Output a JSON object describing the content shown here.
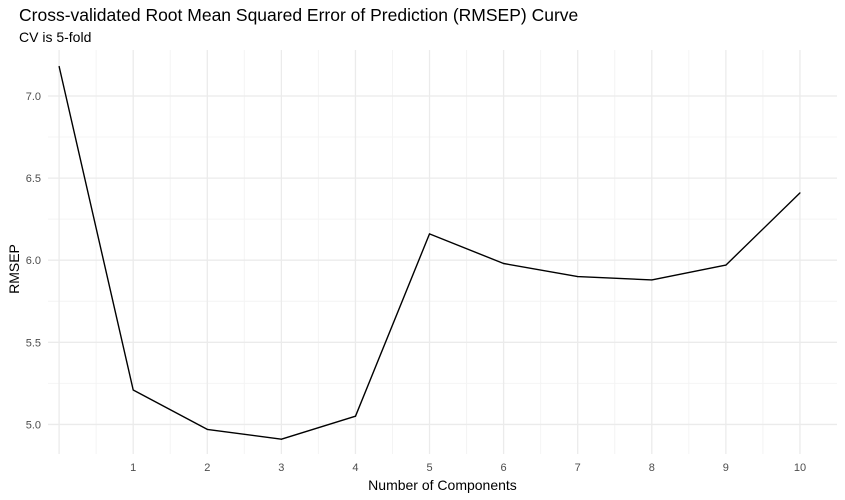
{
  "chart_data": {
    "type": "line",
    "title": "Cross-validated Root Mean Squared Error of Prediction (RMSEP) Curve",
    "subtitle": "CV is 5-fold",
    "xlabel": "Number of Components",
    "ylabel": "RMSEP",
    "x": [
      0,
      1,
      2,
      3,
      4,
      5,
      6,
      7,
      8,
      9,
      10
    ],
    "y": [
      7.18,
      5.21,
      4.97,
      4.91,
      5.05,
      6.16,
      5.98,
      5.9,
      5.88,
      5.97,
      6.41
    ],
    "x_ticks": [
      1,
      2,
      3,
      4,
      5,
      6,
      7,
      8,
      9,
      10
    ],
    "y_ticks": [
      5.0,
      5.5,
      6.0,
      6.5,
      7.0
    ],
    "y_tick_labels": [
      "5.0",
      "5.5",
      "6.0",
      "6.5",
      "7.0"
    ],
    "xlim": [
      -0.15,
      10.5
    ],
    "ylim": [
      4.82,
      7.28
    ],
    "grid": true,
    "line_color": "#000000",
    "grid_major_color": "#ebebeb",
    "grid_minor_color": "#f4f4f4"
  }
}
